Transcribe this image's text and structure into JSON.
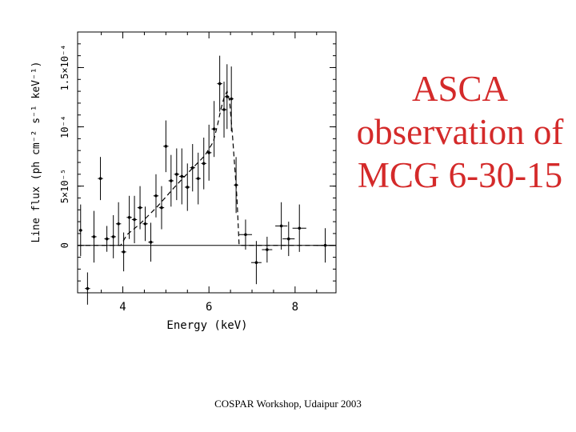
{
  "slide_title": {
    "lines": [
      "ASCA",
      "observation of",
      "MCG 6-30-15"
    ],
    "color": "#d42a2a"
  },
  "footer": "COSPAR Workshop, Udaipur 2003",
  "chart_data": {
    "type": "scatter",
    "xlabel": "Energy (keV)",
    "ylabel": "Line flux (ph cm⁻² s⁻¹ keV⁻¹)",
    "xlim": [
      2.95,
      8.95
    ],
    "ylim": [
      -4e-05,
      0.00018
    ],
    "x_ticks": [
      {
        "value": 4,
        "label": "4"
      },
      {
        "value": 6,
        "label": "6"
      },
      {
        "value": 8,
        "label": "8"
      }
    ],
    "y_ticks": [
      {
        "value": 0,
        "label": "0"
      },
      {
        "value": 5e-05,
        "label": "5×10⁻⁵"
      },
      {
        "value": 0.0001,
        "label": "10⁻⁴"
      },
      {
        "value": 0.00015,
        "label": "1.5×10⁻⁴"
      }
    ],
    "grid": false,
    "zero_line": 0,
    "series": [
      {
        "style": "points-with-error-bars",
        "color": "#000000",
        "points": [
          {
            "x": 3.02,
            "y": 1.27e-05,
            "xerr": 0.04,
            "yerr": 2.18e-05
          },
          {
            "x": 3.18,
            "y": -3.64e-05,
            "xerr": 0.06,
            "yerr": 1.36e-05
          },
          {
            "x": 3.33,
            "y": 7.3e-06,
            "xerr": 0.06,
            "yerr": 2.18e-05
          },
          {
            "x": 3.48,
            "y": 5.64e-05,
            "xerr": 0.06,
            "yerr": 1.82e-05
          },
          {
            "x": 3.63,
            "y": 5.5e-06,
            "xerr": 0.06,
            "yerr": 1.09e-05
          },
          {
            "x": 3.78,
            "y": 7.3e-06,
            "xerr": 0.06,
            "yerr": 1.82e-05
          },
          {
            "x": 3.9,
            "y": 1.82e-05,
            "xerr": 0.06,
            "yerr": 1.82e-05
          },
          {
            "x": 4.02,
            "y": -5.5e-06,
            "xerr": 0.06,
            "yerr": 1.64e-05
          },
          {
            "x": 4.15,
            "y": 2.36e-05,
            "xerr": 0.06,
            "yerr": 1.82e-05
          },
          {
            "x": 4.27,
            "y": 2.18e-05,
            "xerr": 0.06,
            "yerr": 2e-05
          },
          {
            "x": 4.4,
            "y": 3.18e-05,
            "xerr": 0.06,
            "yerr": 1.82e-05
          },
          {
            "x": 4.52,
            "y": 1.82e-05,
            "xerr": 0.06,
            "yerr": 1.45e-05
          },
          {
            "x": 4.65,
            "y": 2.7e-06,
            "xerr": 0.06,
            "yerr": 1.64e-05
          },
          {
            "x": 4.77,
            "y": 4.18e-05,
            "xerr": 0.06,
            "yerr": 1.82e-05
          },
          {
            "x": 4.9,
            "y": 3.18e-05,
            "xerr": 0.06,
            "yerr": 1.82e-05
          },
          {
            "x": 5.0,
            "y": 8.36e-05,
            "xerr": 0.06,
            "yerr": 2.18e-05
          },
          {
            "x": 5.12,
            "y": 5.45e-05,
            "xerr": 0.06,
            "yerr": 2.18e-05
          },
          {
            "x": 5.25,
            "y": 6e-05,
            "xerr": 0.06,
            "yerr": 2.18e-05
          },
          {
            "x": 5.37,
            "y": 5.82e-05,
            "xerr": 0.06,
            "yerr": 2.36e-05
          },
          {
            "x": 5.5,
            "y": 4.91e-05,
            "xerr": 0.06,
            "yerr": 2e-05
          },
          {
            "x": 5.62,
            "y": 6.55e-05,
            "xerr": 0.06,
            "yerr": 2e-05
          },
          {
            "x": 5.75,
            "y": 5.64e-05,
            "xerr": 0.06,
            "yerr": 2.18e-05
          },
          {
            "x": 5.88,
            "y": 6.91e-05,
            "xerr": 0.06,
            "yerr": 2.18e-05
          },
          {
            "x": 6.0,
            "y": 7.82e-05,
            "xerr": 0.06,
            "yerr": 2.36e-05
          },
          {
            "x": 6.12,
            "y": 9.82e-05,
            "xerr": 0.06,
            "yerr": 2.36e-05
          },
          {
            "x": 6.25,
            "y": 0.0001364,
            "xerr": 0.06,
            "yerr": 2.36e-05
          },
          {
            "x": 6.35,
            "y": 0.0001145,
            "xerr": 0.06,
            "yerr": 2.36e-05
          },
          {
            "x": 6.42,
            "y": 0.0001255,
            "xerr": 0.05,
            "yerr": 2.73e-05
          },
          {
            "x": 6.52,
            "y": 0.0001236,
            "xerr": 0.05,
            "yerr": 2.73e-05
          },
          {
            "x": 6.63,
            "y": 5.09e-05,
            "xerr": 0.05,
            "yerr": 2.36e-05
          },
          {
            "x": 6.85,
            "y": 9.1e-06,
            "xerr": 0.15,
            "yerr": 1.27e-05
          },
          {
            "x": 7.1,
            "y": -1.45e-05,
            "xerr": 0.12,
            "yerr": 1.82e-05
          },
          {
            "x": 7.35,
            "y": -3.6e-06,
            "xerr": 0.12,
            "yerr": 1.09e-05
          },
          {
            "x": 7.68,
            "y": 1.64e-05,
            "xerr": 0.14,
            "yerr": 2e-05
          },
          {
            "x": 7.85,
            "y": 5.5e-06,
            "xerr": 0.14,
            "yerr": 1.45e-05
          },
          {
            "x": 8.1,
            "y": 1.45e-05,
            "xerr": 0.16,
            "yerr": 2e-05
          },
          {
            "x": 8.7,
            "y": 0.0,
            "xerr": 0.2,
            "yerr": 1.45e-05
          }
        ]
      },
      {
        "style": "dashed-model-line",
        "color": "#000000",
        "points": [
          {
            "x": 2.95,
            "y": 0
          },
          {
            "x": 3.95,
            "y": 0
          },
          {
            "x": 4.1,
            "y": 9.1e-06
          },
          {
            "x": 4.4,
            "y": 1.82e-05
          },
          {
            "x": 4.8,
            "y": 3.27e-05
          },
          {
            "x": 5.2,
            "y": 4.91e-05
          },
          {
            "x": 5.6,
            "y": 6.45e-05
          },
          {
            "x": 5.9,
            "y": 7.55e-05
          },
          {
            "x": 6.1,
            "y": 8.73e-05
          },
          {
            "x": 6.2,
            "y": 0.0001018
          },
          {
            "x": 6.28,
            "y": 0.0001155
          },
          {
            "x": 6.35,
            "y": 0.0001245
          },
          {
            "x": 6.42,
            "y": 0.00013
          },
          {
            "x": 6.48,
            "y": 0.0001218
          },
          {
            "x": 6.55,
            "y": 9.09e-05
          },
          {
            "x": 6.65,
            "y": 4e-05
          },
          {
            "x": 6.7,
            "y": 0
          },
          {
            "x": 8.95,
            "y": 0
          }
        ]
      }
    ]
  }
}
